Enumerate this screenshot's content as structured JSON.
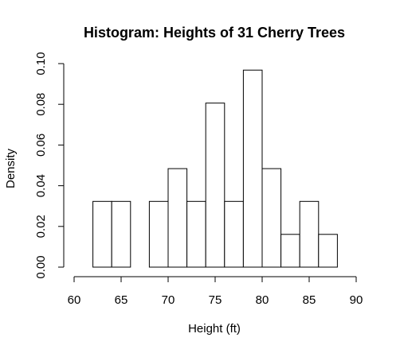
{
  "chart_data": {
    "type": "bar",
    "title": "Histogram: Heights of 31 Cherry Trees",
    "xlabel": "Height (ft)",
    "ylabel": "Density",
    "bins": [
      {
        "x0": 62,
        "x1": 64,
        "density": 0.0323
      },
      {
        "x0": 64,
        "x1": 66,
        "density": 0.0323
      },
      {
        "x0": 66,
        "x1": 68,
        "density": 0.0
      },
      {
        "x0": 68,
        "x1": 70,
        "density": 0.0323
      },
      {
        "x0": 70,
        "x1": 72,
        "density": 0.0484
      },
      {
        "x0": 72,
        "x1": 74,
        "density": 0.0323
      },
      {
        "x0": 74,
        "x1": 76,
        "density": 0.0806
      },
      {
        "x0": 76,
        "x1": 78,
        "density": 0.0323
      },
      {
        "x0": 78,
        "x1": 80,
        "density": 0.0968
      },
      {
        "x0": 80,
        "x1": 82,
        "density": 0.0484
      },
      {
        "x0": 82,
        "x1": 84,
        "density": 0.0161
      },
      {
        "x0": 84,
        "x1": 86,
        "density": 0.0323
      },
      {
        "x0": 86,
        "x1": 88,
        "density": 0.0161
      }
    ],
    "xlim": [
      60,
      90
    ],
    "ylim": [
      0,
      0.1
    ],
    "x_ticks": [
      "60",
      "65",
      "70",
      "75",
      "80",
      "85",
      "90"
    ],
    "y_ticks": [
      "0.00",
      "0.02",
      "0.04",
      "0.06",
      "0.08",
      "0.10"
    ],
    "grid": false,
    "legend": "none"
  }
}
